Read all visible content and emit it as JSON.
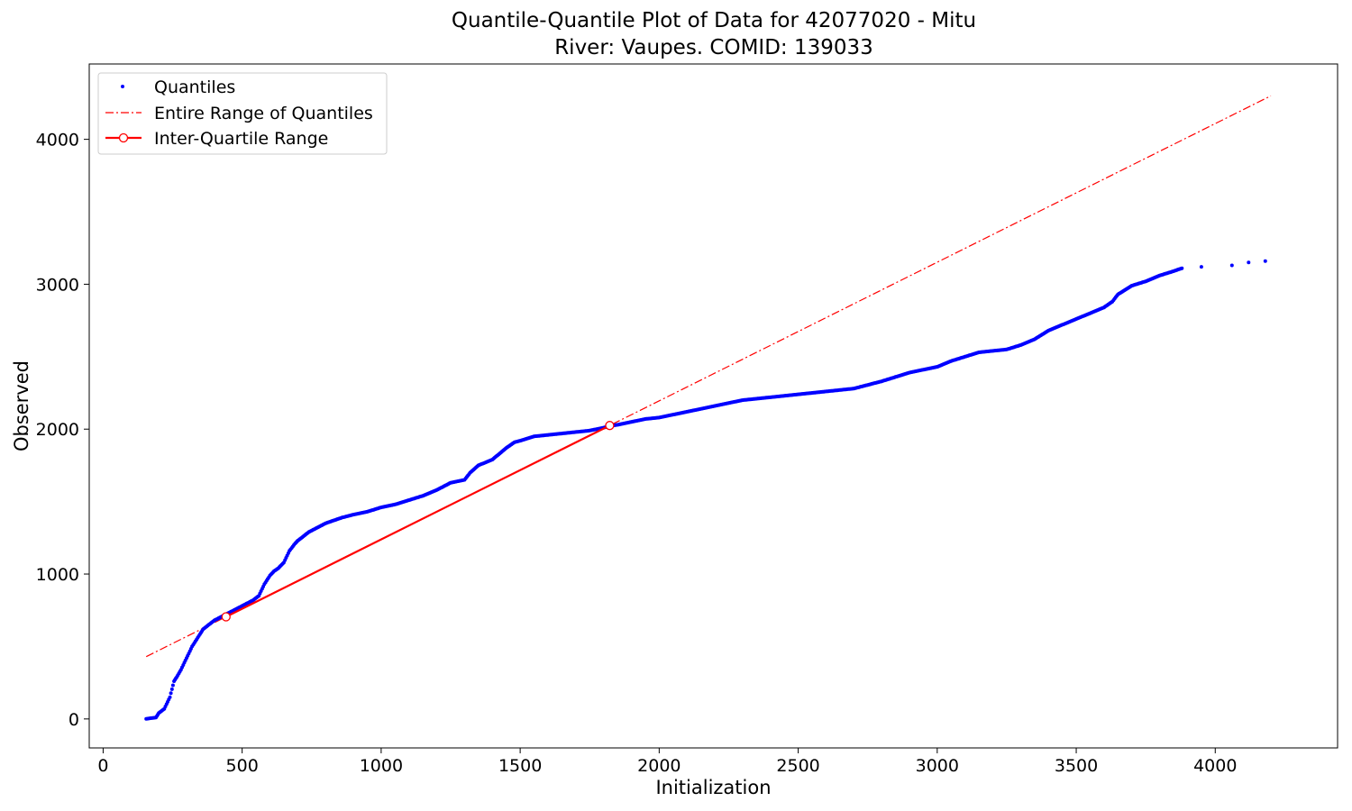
{
  "chart_data": {
    "type": "scatter",
    "title": "Quantile-Quantile Plot of Data for 42077020 - Mitu",
    "subtitle": "River: Vaupes. COMID: 139033",
    "xlabel": "Initialization",
    "ylabel": "Observed",
    "xlim": [
      -50,
      4440
    ],
    "ylim": [
      -200,
      4520
    ],
    "xticks": [
      0,
      500,
      1000,
      1500,
      2000,
      2500,
      3000,
      3500,
      4000
    ],
    "yticks": [
      0,
      1000,
      2000,
      3000,
      4000
    ],
    "grid": false,
    "legend_position": "top-left",
    "series": [
      {
        "name": "Quantiles",
        "kind": "points",
        "color": "#0000ff",
        "x": [
          155,
          170,
          190,
          200,
          220,
          240,
          255,
          265,
          280,
          300,
          320,
          340,
          360,
          380,
          400,
          420,
          440,
          460,
          480,
          500,
          520,
          540,
          560,
          580,
          600,
          615,
          630,
          650,
          670,
          690,
          700,
          720,
          740,
          760,
          780,
          800,
          830,
          860,
          900,
          950,
          1000,
          1050,
          1100,
          1150,
          1200,
          1250,
          1300,
          1320,
          1350,
          1400,
          1450,
          1480,
          1500,
          1550,
          1600,
          1650,
          1700,
          1750,
          1800,
          1820,
          1850,
          1900,
          1950,
          2000,
          2100,
          2200,
          2300,
          2400,
          2500,
          2600,
          2700,
          2800,
          2900,
          3000,
          3050,
          3100,
          3150,
          3200,
          3250,
          3300,
          3350,
          3400,
          3450,
          3500,
          3550,
          3600,
          3630,
          3650,
          3700,
          3750,
          3800,
          3850,
          3880,
          3950,
          4060,
          4120,
          4180
        ],
        "y": [
          0,
          5,
          10,
          40,
          70,
          150,
          260,
          290,
          340,
          420,
          500,
          560,
          620,
          650,
          680,
          700,
          720,
          740,
          760,
          780,
          800,
          820,
          850,
          930,
          990,
          1020,
          1040,
          1080,
          1160,
          1210,
          1230,
          1260,
          1290,
          1310,
          1330,
          1350,
          1370,
          1390,
          1410,
          1430,
          1460,
          1480,
          1510,
          1540,
          1580,
          1630,
          1650,
          1700,
          1750,
          1790,
          1870,
          1910,
          1920,
          1950,
          1960,
          1970,
          1980,
          1990,
          2010,
          2020,
          2030,
          2050,
          2070,
          2080,
          2120,
          2160,
          2200,
          2220,
          2240,
          2260,
          2280,
          2330,
          2390,
          2430,
          2470,
          2500,
          2530,
          2540,
          2550,
          2580,
          2620,
          2680,
          2720,
          2760,
          2800,
          2840,
          2880,
          2930,
          2990,
          3020,
          3060,
          3090,
          3110,
          3120,
          3130,
          3150,
          3160
        ]
      },
      {
        "name": "Entire Range of Quantiles",
        "kind": "dashdot-line",
        "color": "#ff0000",
        "x": [
          155,
          4200
        ],
        "y": [
          430,
          4300
        ]
      },
      {
        "name": "Inter-Quartile Range",
        "kind": "line-with-markers",
        "color": "#ff0000",
        "x": [
          442,
          1822
        ],
        "y": [
          705,
          2025
        ]
      }
    ]
  }
}
